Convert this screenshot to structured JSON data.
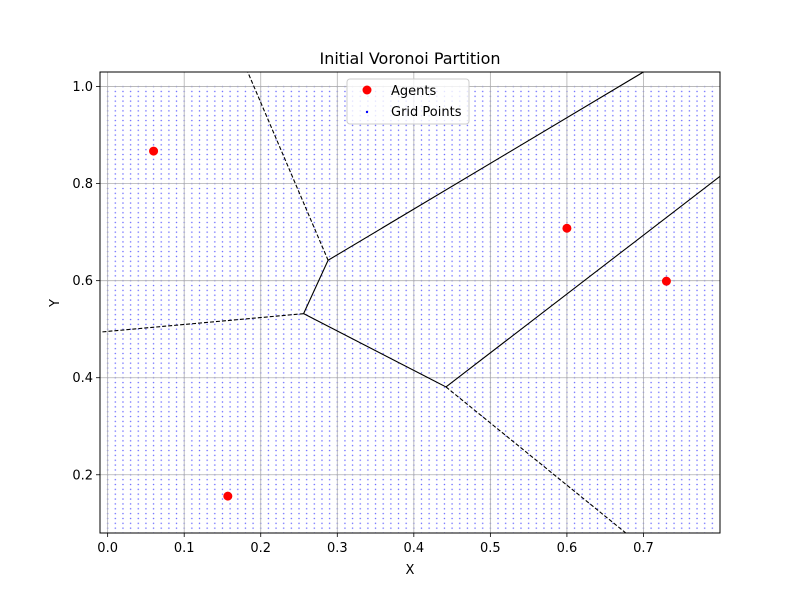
{
  "chart_data": {
    "type": "scatter",
    "title": "Initial Voronoi Partition",
    "xlabel": "X",
    "ylabel": "Y",
    "xlim": [
      -0.01,
      0.8
    ],
    "ylim": [
      0.08,
      1.03
    ],
    "xticks": [
      0.0,
      0.1,
      0.2,
      0.3,
      0.4,
      0.5,
      0.6,
      0.7
    ],
    "yticks": [
      0.2,
      0.4,
      0.6,
      0.8,
      1.0
    ],
    "grid": true,
    "legend_placement": "upper center",
    "colors": {
      "agents": "#ff0000",
      "grid_points": "#0000ff",
      "edges": "#000000"
    },
    "series": [
      {
        "name": "Agents",
        "kind": "scatter",
        "points": [
          {
            "x": 0.06,
            "y": 0.867
          },
          {
            "x": 0.157,
            "y": 0.156
          },
          {
            "x": 0.6,
            "y": 0.708
          },
          {
            "x": 0.73,
            "y": 0.599
          }
        ]
      },
      {
        "name": "Grid Points",
        "kind": "scatter",
        "x_range": [
          0.0,
          0.8
        ],
        "y_range": [
          0.08,
          1.0
        ],
        "spacing": 0.01
      }
    ],
    "voronoi_vertices": [
      {
        "x": 0.288,
        "y": 0.642
      },
      {
        "x": 0.256,
        "y": 0.532
      },
      {
        "x": 0.442,
        "y": 0.381
      }
    ],
    "voronoi_edges": [
      {
        "from": [
          0.288,
          0.642
        ],
        "to": [
          0.256,
          0.532
        ],
        "style": "solid"
      },
      {
        "from": [
          0.256,
          0.532
        ],
        "to": [
          0.442,
          0.381
        ],
        "style": "solid"
      },
      {
        "from": [
          0.288,
          0.642
        ],
        "to": [
          0.7,
          1.03
        ],
        "style": "solid"
      },
      {
        "from": [
          0.442,
          0.381
        ],
        "to": [
          0.8,
          0.815
        ],
        "style": "solid"
      },
      {
        "from": [
          0.288,
          0.642
        ],
        "to": [
          0.183,
          1.03
        ],
        "style": "dashed"
      },
      {
        "from": [
          0.256,
          0.532
        ],
        "to": [
          -0.01,
          0.494
        ],
        "style": "dashed"
      },
      {
        "from": [
          0.442,
          0.381
        ],
        "to": [
          0.677,
          0.08
        ],
        "style": "dashed"
      }
    ]
  }
}
